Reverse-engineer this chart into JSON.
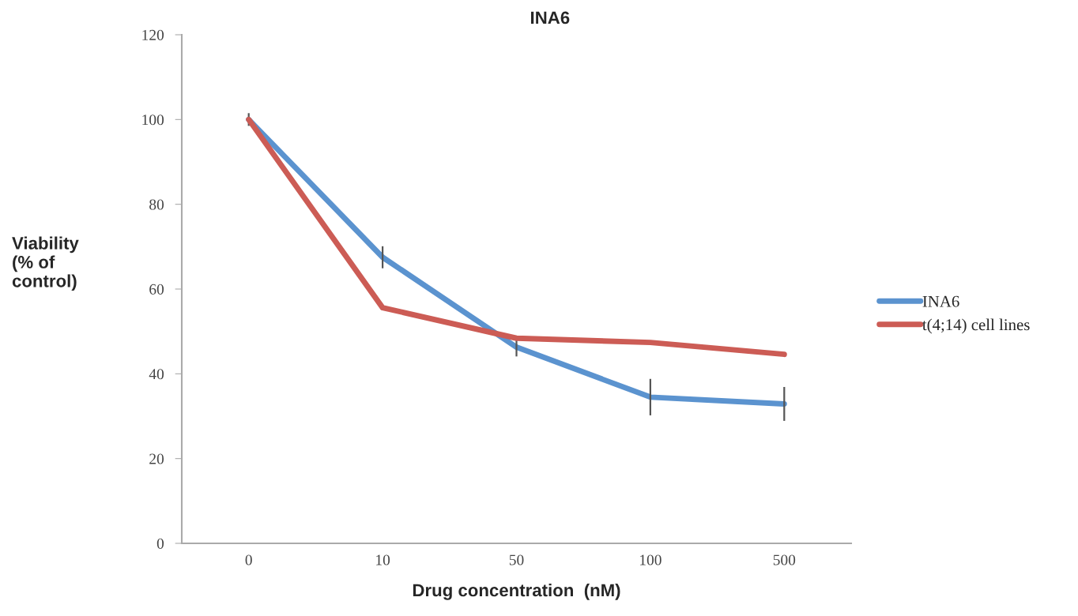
{
  "chart_data": {
    "type": "line",
    "title": "INA6",
    "xlabel": "Drug concentration  (nM)",
    "ylabel": "Viability\n(% of\ncontrol)",
    "categories": [
      "0",
      "10",
      "50",
      "100",
      "500"
    ],
    "series": [
      {
        "name": "INA6",
        "color": "#5b93cf",
        "values": [
          100,
          67.5,
          46.3,
          34.5,
          32.9
        ],
        "errors": [
          1.5,
          2.6,
          2.2,
          4.3,
          4
        ]
      },
      {
        "name": "t(4;14) cell lines",
        "color": "#cc5c55",
        "values": [
          100,
          55.6,
          48.4,
          47.4,
          44.6
        ]
      }
    ],
    "ylim": [
      0,
      120
    ],
    "yticks": [
      0,
      20,
      40,
      60,
      80,
      100,
      120
    ],
    "grid": false,
    "legend": "right",
    "marker": "none",
    "line_style": "solid"
  }
}
